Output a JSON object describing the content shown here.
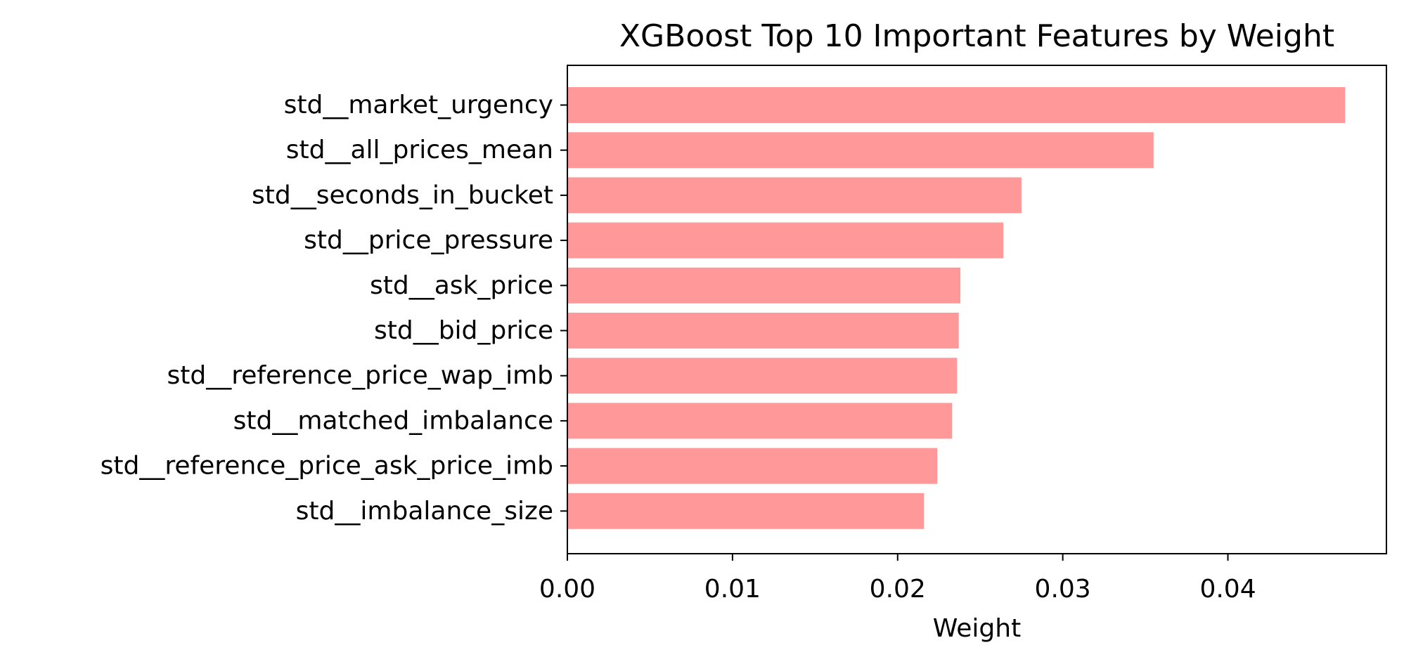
{
  "chart_data": {
    "type": "bar",
    "orientation": "horizontal",
    "title": "XGBoost Top 10 Important Features by Weight",
    "xlabel": "Weight",
    "ylabel": "",
    "categories": [
      "std__market_urgency",
      "std__all_prices_mean",
      "std__seconds_in_bucket",
      "std__price_pressure",
      "std__ask_price",
      "std__bid_price",
      "std__reference_price_wap_imb",
      "std__matched_imbalance",
      "std__reference_price_ask_price_imb",
      "std__imbalance_size"
    ],
    "values": [
      0.0471,
      0.0355,
      0.0275,
      0.0264,
      0.0238,
      0.0237,
      0.0236,
      0.0233,
      0.0224,
      0.0216
    ],
    "xlim": [
      0,
      0.0496
    ],
    "xticks": [
      0.0,
      0.01,
      0.02,
      0.03,
      0.04
    ],
    "xtick_labels": [
      "0.00",
      "0.01",
      "0.02",
      "0.03",
      "0.04"
    ],
    "grid": false,
    "legend": "none",
    "bar_color": "#ff9999",
    "axis_color": "#000000"
  }
}
